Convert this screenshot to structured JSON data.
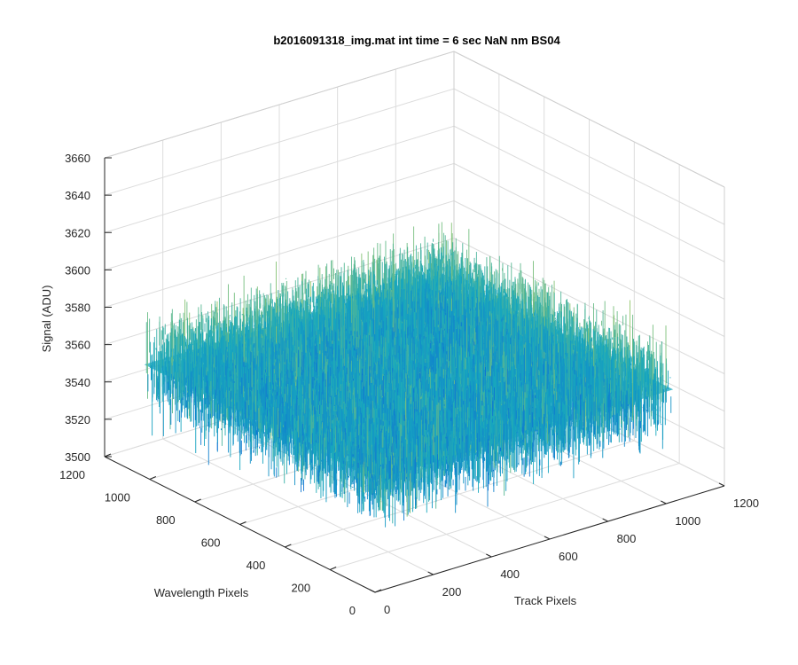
{
  "chart_data": {
    "type": "surface",
    "title": "b2016091318_img.mat int time = 6 sec  NaN nm BS04",
    "xlabel": "Track Pixels",
    "ylabel": "Wavelength Pixels",
    "zlabel": "Signal (ADU)",
    "xlim": [
      0,
      1200
    ],
    "ylim": [
      0,
      1200
    ],
    "zlim": [
      3500,
      3660
    ],
    "xticks": [
      0,
      200,
      400,
      600,
      800,
      1000,
      1200
    ],
    "yticks": [
      0,
      200,
      400,
      600,
      800,
      1000,
      1200
    ],
    "zticks": [
      3500,
      3520,
      3540,
      3560,
      3580,
      3600,
      3620,
      3640,
      3660
    ],
    "data_extent": {
      "x": [
        0,
        1024
      ],
      "y": [
        0,
        1024
      ]
    },
    "signal_mean": 3560,
    "signal_typical_range": [
      3520,
      3610
    ],
    "grid": true,
    "colormap": "parula",
    "colors": {
      "low": "#0b59dd",
      "mid": "#17a8be",
      "high": "#c4d14a"
    }
  }
}
